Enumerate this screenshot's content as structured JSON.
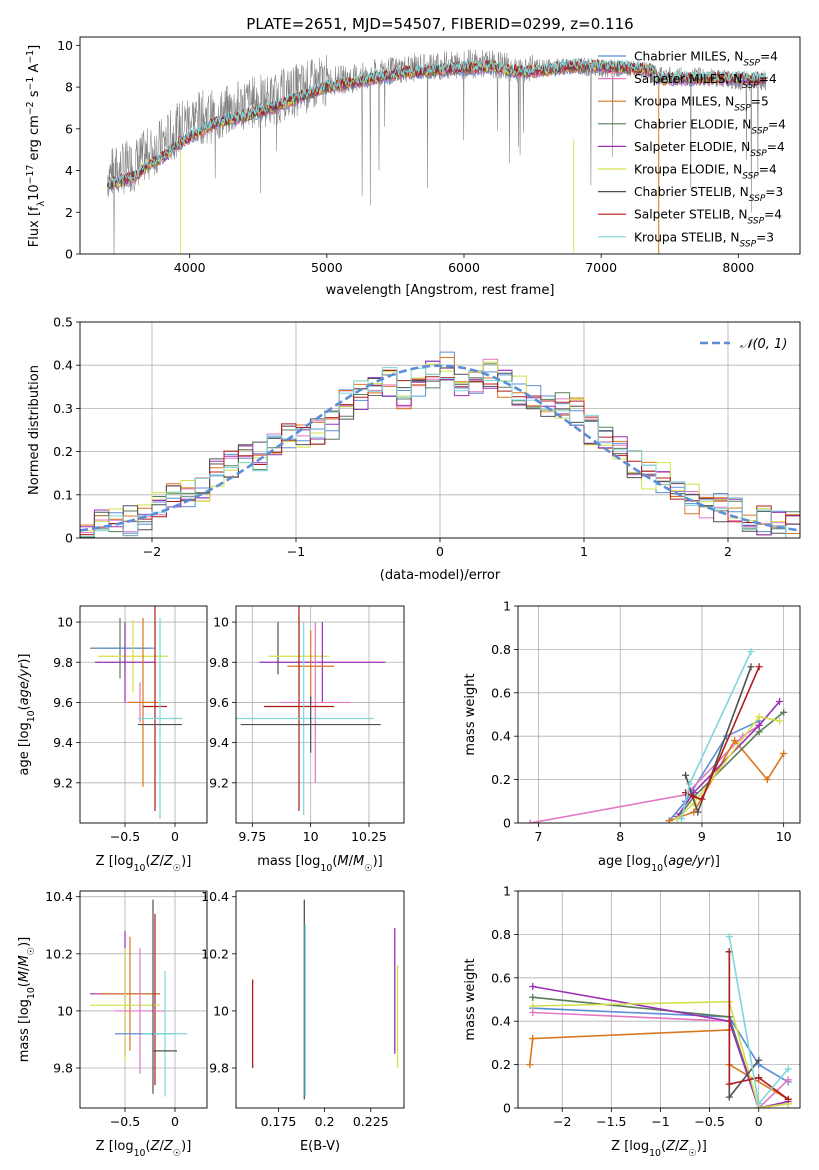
{
  "title": "PLATE=2651, MJD=54507, FIBERID=0299, z=0.116",
  "chart_data": [
    {
      "id": "spectrum",
      "type": "line",
      "xlabel": "wavelength [Angstrom, rest frame]",
      "ylabel": "Flux [f_λ10^-17 erg cm^-2 s^-1 A^-1]",
      "xlim": [
        3200,
        8450
      ],
      "ylim": [
        0,
        10.4
      ],
      "xticks": [
        4000,
        5000,
        6000,
        7000,
        8000
      ],
      "yticks": [
        0,
        2,
        4,
        6,
        8,
        10
      ],
      "grid": false,
      "legend_position": "right",
      "data_series": {
        "name": "",
        "color": "#808080",
        "x": [
          3400,
          3600,
          3800,
          4000,
          4200,
          4400,
          4600,
          4800,
          5000,
          5200,
          5400,
          5600,
          5800,
          6000,
          6200,
          6400,
          6600,
          6800,
          7000,
          7200,
          7400,
          7600,
          7800,
          8000,
          8200
        ],
        "y": [
          3.8,
          4.3,
          5.3,
          6.5,
          6.6,
          7.2,
          7.4,
          7.9,
          8.3,
          8.4,
          8.7,
          8.9,
          9.0,
          9.1,
          9.1,
          8.9,
          8.9,
          9.0,
          8.9,
          8.9,
          8.6,
          8.5,
          8.5,
          8.3,
          8.2
        ]
      },
      "series": [
        {
          "name": "Chabrier MILES, N_SSP=4",
          "color": "#5b8ed6"
        },
        {
          "name": "Salpeter MILES, N_SSP=4",
          "color": "#e377c2"
        },
        {
          "name": "Kroupa MILES, N_SSP=5",
          "color": "#d9771f"
        },
        {
          "name": "Chabrier ELODIE, N_SSP=4",
          "color": "#5a7d5a"
        },
        {
          "name": "Salpeter ELODIE, N_SSP=4",
          "color": "#9b30b5"
        },
        {
          "name": "Kroupa ELODIE, N_SSP=4",
          "color": "#d4e04a"
        },
        {
          "name": "Chabrier STELIB, N_SSP=3",
          "color": "#505050"
        },
        {
          "name": "Salpeter STELIB, N_SSP=4",
          "color": "#b01c1c"
        },
        {
          "name": "Kroupa STELIB, N_SSP=3",
          "color": "#7fd6da"
        }
      ],
      "model_curve": {
        "x": [
          3400,
          3500,
          3600,
          3700,
          3800,
          3900,
          4000,
          4200,
          4400,
          4600,
          4800,
          5000,
          5200,
          5400,
          5600,
          5800,
          6000,
          6200,
          6400,
          6600,
          6800,
          7000,
          7200,
          7400
        ],
        "y": [
          3.3,
          3.5,
          3.7,
          4.3,
          4.6,
          5.2,
          5.6,
          6.3,
          6.6,
          7.0,
          7.5,
          8.0,
          8.2,
          8.5,
          8.7,
          8.8,
          8.9,
          9.0,
          8.7,
          8.8,
          9.0,
          9.0,
          8.9,
          8.8
        ]
      }
    },
    {
      "id": "residuals",
      "type": "line",
      "xlabel": "(data-model)/error",
      "ylabel": "Normed distribution",
      "xlim": [
        -2.5,
        2.5
      ],
      "ylim": [
        0,
        0.5
      ],
      "xticks": [
        -2,
        -1,
        0,
        1,
        2
      ],
      "yticks": [
        0.0,
        0.1,
        0.2,
        0.3,
        0.4,
        0.5
      ],
      "grid": true,
      "legend_position": "top-right",
      "reference": {
        "name": "𝒩(0, 1)",
        "mean": 0,
        "sigma": 1,
        "color": "#5b8ed6"
      },
      "histogram": {
        "bins": [
          -2.5,
          -2.4,
          -2.3,
          -2.2,
          -2.1,
          -2.0,
          -1.9,
          -1.8,
          -1.7,
          -1.6,
          -1.5,
          -1.4,
          -1.3,
          -1.2,
          -1.1,
          -1.0,
          -0.9,
          -0.8,
          -0.7,
          -0.6,
          -0.5,
          -0.4,
          -0.3,
          -0.2,
          -0.1,
          0.0,
          0.1,
          0.2,
          0.3,
          0.4,
          0.5,
          0.6,
          0.7,
          0.8,
          0.9,
          1.0,
          1.1,
          1.2,
          1.3,
          1.4,
          1.5,
          1.6,
          1.7,
          1.8,
          1.9,
          2.0,
          2.1,
          2.2,
          2.3,
          2.4,
          2.5
        ],
        "values": [
          0.02,
          0.03,
          0.04,
          0.04,
          0.05,
          0.08,
          0.1,
          0.1,
          0.11,
          0.15,
          0.17,
          0.2,
          0.19,
          0.21,
          0.24,
          0.24,
          0.25,
          0.26,
          0.31,
          0.33,
          0.35,
          0.36,
          0.33,
          0.36,
          0.38,
          0.4,
          0.36,
          0.37,
          0.38,
          0.36,
          0.34,
          0.32,
          0.31,
          0.31,
          0.29,
          0.25,
          0.23,
          0.2,
          0.17,
          0.14,
          0.14,
          0.12,
          0.09,
          0.08,
          0.07,
          0.06,
          0.05,
          0.04,
          0.04,
          0.03
        ]
      }
    },
    {
      "id": "age_vs_Z",
      "type": "scatter",
      "xlabel": "Z [log10(Z/Z☉)]",
      "ylabel": "age  [log10(age/yr)]",
      "xlim": [
        -0.95,
        0.32
      ],
      "ylim": [
        9.0,
        10.08
      ],
      "xticks": [
        -0.5,
        0.0
      ],
      "yticks": [
        9.2,
        9.4,
        9.6,
        9.8,
        10.0
      ],
      "grid": true,
      "points": [
        {
          "x": -0.55,
          "y": 9.87,
          "xerr": 0.3,
          "yerr": 0.15,
          "color": "#5a7d5a"
        },
        {
          "x": -0.5,
          "y": 9.87,
          "xerr": 0.3,
          "yerr": 0.12,
          "color": "#5b8ed6"
        },
        {
          "x": -0.42,
          "y": 9.83,
          "xerr": 0.35,
          "yerr": 0.18,
          "color": "#d4e04a"
        },
        {
          "x": -0.5,
          "y": 9.8,
          "xerr": 0.3,
          "yerr": 0.2,
          "color": "#9b30b5"
        },
        {
          "x": -0.35,
          "y": 9.6,
          "xerr": 0.15,
          "yerr": 0.1,
          "color": "#e377c2"
        },
        {
          "x": -0.32,
          "y": 9.6,
          "xerr": 0.15,
          "yerr": 0.42,
          "color": "#d9771f"
        },
        {
          "x": -0.2,
          "y": 9.58,
          "xerr": 0.12,
          "yerr": 0.52,
          "color": "#b01c1c"
        },
        {
          "x": -0.15,
          "y": 9.52,
          "xerr": 0.22,
          "yerr": 0.5,
          "color": "#7fd6da"
        },
        {
          "x": -0.15,
          "y": 9.49,
          "xerr": 0.22,
          "yerr": 0.0,
          "color": "#505050"
        }
      ]
    },
    {
      "id": "age_vs_mass",
      "type": "scatter",
      "xlabel": "mass [log10(M/M☉)]",
      "ylabel": "",
      "xlim": [
        9.68,
        10.4
      ],
      "ylim": [
        9.0,
        10.08
      ],
      "xticks": [
        9.75,
        10.0,
        10.25
      ],
      "yticks": [
        9.2,
        9.4,
        9.6,
        9.8,
        10.0
      ],
      "grid": true,
      "points": [
        {
          "x": 9.86,
          "y": 9.87,
          "xerr": 0.0,
          "yerr": 0.13,
          "color": "#505050"
        },
        {
          "x": 9.95,
          "y": 9.83,
          "xerr": 0.13,
          "yerr": 0.2,
          "color": "#d4e04a"
        },
        {
          "x": 10.05,
          "y": 9.8,
          "xerr": 0.27,
          "yerr": 0.2,
          "color": "#9b30b5"
        },
        {
          "x": 10.0,
          "y": 9.78,
          "xerr": 0.1,
          "yerr": 0.18,
          "color": "#d9771f"
        },
        {
          "x": 10.02,
          "y": 9.6,
          "xerr": 0.15,
          "yerr": 0.4,
          "color": "#e377c2"
        },
        {
          "x": 9.95,
          "y": 9.58,
          "xerr": 0.15,
          "yerr": 0.52,
          "color": "#b01c1c"
        },
        {
          "x": 9.97,
          "y": 9.52,
          "xerr": 0.3,
          "yerr": 0.48,
          "color": "#7fd6da"
        },
        {
          "x": 10.0,
          "y": 9.49,
          "xerr": 0.3,
          "yerr": 0.14,
          "color": "#505050"
        }
      ]
    },
    {
      "id": "mass_weight_vs_age",
      "type": "line",
      "xlabel": "age  [log10(age/yr)]",
      "ylabel": "mass weight",
      "xlim": [
        6.75,
        10.2
      ],
      "ylim": [
        0.0,
        1.0
      ],
      "xticks": [
        7,
        8,
        9,
        10
      ],
      "yticks": [
        0.0,
        0.2,
        0.4,
        0.6,
        0.8,
        1.0
      ],
      "grid": true,
      "series": [
        {
          "name": "Chabrier MILES, N_SSP=4",
          "x": [
            8.6,
            8.8,
            9.3,
            9.7
          ],
          "y": [
            0.01,
            0.1,
            0.4,
            0.47
          ],
          "color": "#5b8ed6"
        },
        {
          "name": "Salpeter MILES, N_SSP=4",
          "x": [
            6.9,
            8.8,
            9.5,
            9.7
          ],
          "y": [
            0.0,
            0.13,
            0.4,
            0.45
          ],
          "color": "#e377c2"
        },
        {
          "name": "Kroupa MILES, N_SSP=5",
          "x": [
            8.6,
            8.9,
            9.4,
            9.8,
            10.0
          ],
          "y": [
            0.01,
            0.05,
            0.38,
            0.2,
            0.32
          ],
          "color": "#d9771f"
        },
        {
          "name": "Chabrier ELODIE, N_SSP=4",
          "x": [
            8.7,
            8.9,
            9.7,
            10.0
          ],
          "y": [
            0.02,
            0.12,
            0.42,
            0.51
          ],
          "color": "#5a7d5a"
        },
        {
          "name": "Salpeter ELODIE, N_SSP=4",
          "x": [
            8.7,
            8.9,
            9.7,
            9.95
          ],
          "y": [
            0.03,
            0.14,
            0.45,
            0.56
          ],
          "color": "#9b30b5"
        },
        {
          "name": "Kroupa ELODIE, N_SSP=4",
          "x": [
            8.7,
            8.9,
            9.7,
            9.95
          ],
          "y": [
            0.02,
            0.09,
            0.49,
            0.47
          ],
          "color": "#d4e04a"
        },
        {
          "name": "Chabrier STELIB, N_SSP=3",
          "x": [
            8.8,
            8.95,
            9.6
          ],
          "y": [
            0.22,
            0.05,
            0.72
          ],
          "color": "#505050"
        },
        {
          "name": "Salpeter STELIB, N_SSP=4",
          "x": [
            8.8,
            8.9,
            9.0,
            9.7
          ],
          "y": [
            0.14,
            0.12,
            0.11,
            0.72
          ],
          "color": "#b01c1c"
        },
        {
          "name": "Kroupa STELIB, N_SSP=3",
          "x": [
            8.75,
            8.85,
            9.6
          ],
          "y": [
            0.02,
            0.18,
            0.79
          ],
          "color": "#7fd6da"
        }
      ]
    },
    {
      "id": "mass_vs_Z",
      "type": "scatter",
      "xlabel": "Z [log10(Z/Z☉)]",
      "ylabel": "mass [log10(M/M☉)]",
      "xlim": [
        -0.95,
        0.32
      ],
      "ylim": [
        9.66,
        10.42
      ],
      "xticks": [
        -0.5,
        0.0
      ],
      "yticks": [
        9.8,
        10.0,
        10.2,
        10.4
      ],
      "grid": true,
      "points": [
        {
          "x": -0.5,
          "y": 10.06,
          "xerr": 0.35,
          "yerr": 0.22,
          "color": "#9b30b5"
        },
        {
          "x": -0.45,
          "y": 10.06,
          "xerr": 0.3,
          "yerr": 0.2,
          "color": "#d9771f"
        },
        {
          "x": -0.2,
          "y": 10.04,
          "xerr": 0.0,
          "yerr": 0.3,
          "color": "#b01c1c"
        },
        {
          "x": -0.5,
          "y": 10.02,
          "xerr": 0.35,
          "yerr": 0.2,
          "color": "#d4e04a"
        },
        {
          "x": -0.35,
          "y": 10.0,
          "xerr": 0.25,
          "yerr": 0.22,
          "color": "#e377c2"
        },
        {
          "x": -0.3,
          "y": 9.92,
          "xerr": 0.3,
          "yerr": 0.0,
          "color": "#5b8ed6"
        },
        {
          "x": -0.1,
          "y": 9.92,
          "xerr": 0.22,
          "yerr": 0.22,
          "color": "#7fd6da"
        },
        {
          "x": -0.1,
          "y": 9.86,
          "xerr": 0.12,
          "yerr": 0.0,
          "color": "#505050"
        },
        {
          "x": -0.22,
          "y": 10.05,
          "xerr": 0.0,
          "yerr": 0.34,
          "color": "#505050"
        }
      ]
    },
    {
      "id": "mass_vs_EBV",
      "type": "scatter",
      "xlabel": "E(B-V)",
      "ylabel": "",
      "xlim": [
        0.152,
        0.243
      ],
      "ylim": [
        9.66,
        10.42
      ],
      "xticks": [
        0.175,
        0.2,
        0.225
      ],
      "yticks": [
        9.8,
        10.0,
        10.2,
        10.4
      ],
      "grid": false,
      "points": [
        {
          "x": 0.161,
          "y": 9.955,
          "yerr": 0.155,
          "color": "#b01c1c"
        },
        {
          "x": 0.189,
          "y": 10.04,
          "yerr": 0.35,
          "color": "#505050"
        },
        {
          "x": 0.1895,
          "y": 10.0,
          "yerr": 0.3,
          "color": "#7fd6da"
        },
        {
          "x": 0.238,
          "y": 10.07,
          "yerr": 0.22,
          "color": "#9b30b5"
        },
        {
          "x": 0.2395,
          "y": 9.98,
          "yerr": 0.18,
          "color": "#d4e04a"
        }
      ]
    },
    {
      "id": "mass_weight_vs_Z",
      "type": "line",
      "xlabel": "Z [log10(Z/Z☉)]",
      "ylabel": "mass weight",
      "xlim": [
        -2.45,
        0.42
      ],
      "ylim": [
        0.0,
        1.0
      ],
      "xticks": [
        -2.0,
        -1.5,
        -1.0,
        -0.5,
        0.0
      ],
      "yticks": [
        0.0,
        0.2,
        0.4,
        0.6,
        0.8,
        1.0
      ],
      "grid": true,
      "series": [
        {
          "name": "Chabrier MILES, N_SSP=4",
          "x": [
            -2.3,
            -0.3,
            0.0,
            0.3
          ],
          "y": [
            0.46,
            0.42,
            0.2,
            0.12
          ],
          "color": "#5b8ed6"
        },
        {
          "name": "Salpeter MILES, N_SSP=4",
          "x": [
            -2.3,
            -0.3,
            0.0,
            0.3
          ],
          "y": [
            0.44,
            0.4,
            0.0,
            0.13
          ],
          "color": "#e377c2"
        },
        {
          "name": "Kroupa MILES, N_SSP=5",
          "x": [
            -2.33,
            -2.3,
            -0.3,
            -0.3,
            0.3
          ],
          "y": [
            0.2,
            0.32,
            0.36,
            0.2,
            0.04
          ],
          "color": "#d9771f"
        },
        {
          "name": "Chabrier ELODIE, N_SSP=4",
          "x": [
            -2.3,
            -0.3,
            0.0,
            0.3
          ],
          "y": [
            0.51,
            0.42,
            0.0,
            0.02
          ],
          "color": "#5a7d5a"
        },
        {
          "name": "Salpeter ELODIE, N_SSP=4",
          "x": [
            -2.3,
            -0.3,
            0.0,
            0.3
          ],
          "y": [
            0.56,
            0.4,
            0.0,
            0.03
          ],
          "color": "#9b30b5"
        },
        {
          "name": "Kroupa ELODIE, N_SSP=4",
          "x": [
            -2.3,
            -0.3,
            0.0,
            0.3
          ],
          "y": [
            0.47,
            0.49,
            0.0,
            0.02
          ],
          "color": "#d4e04a"
        },
        {
          "name": "Chabrier STELIB, N_SSP=3",
          "x": [
            -0.3,
            -0.3,
            0.0
          ],
          "y": [
            0.72,
            0.05,
            0.22
          ],
          "color": "#505050"
        },
        {
          "name": "Salpeter STELIB, N_SSP=4",
          "x": [
            -0.3,
            -0.3,
            0.0,
            0.3
          ],
          "y": [
            0.72,
            0.11,
            0.14,
            0.04
          ],
          "color": "#b01c1c"
        },
        {
          "name": "Kroupa STELIB, N_SSP=3",
          "x": [
            -0.3,
            0.0,
            0.3
          ],
          "y": [
            0.79,
            0.02,
            0.18
          ],
          "color": "#7fd6da"
        }
      ]
    }
  ]
}
